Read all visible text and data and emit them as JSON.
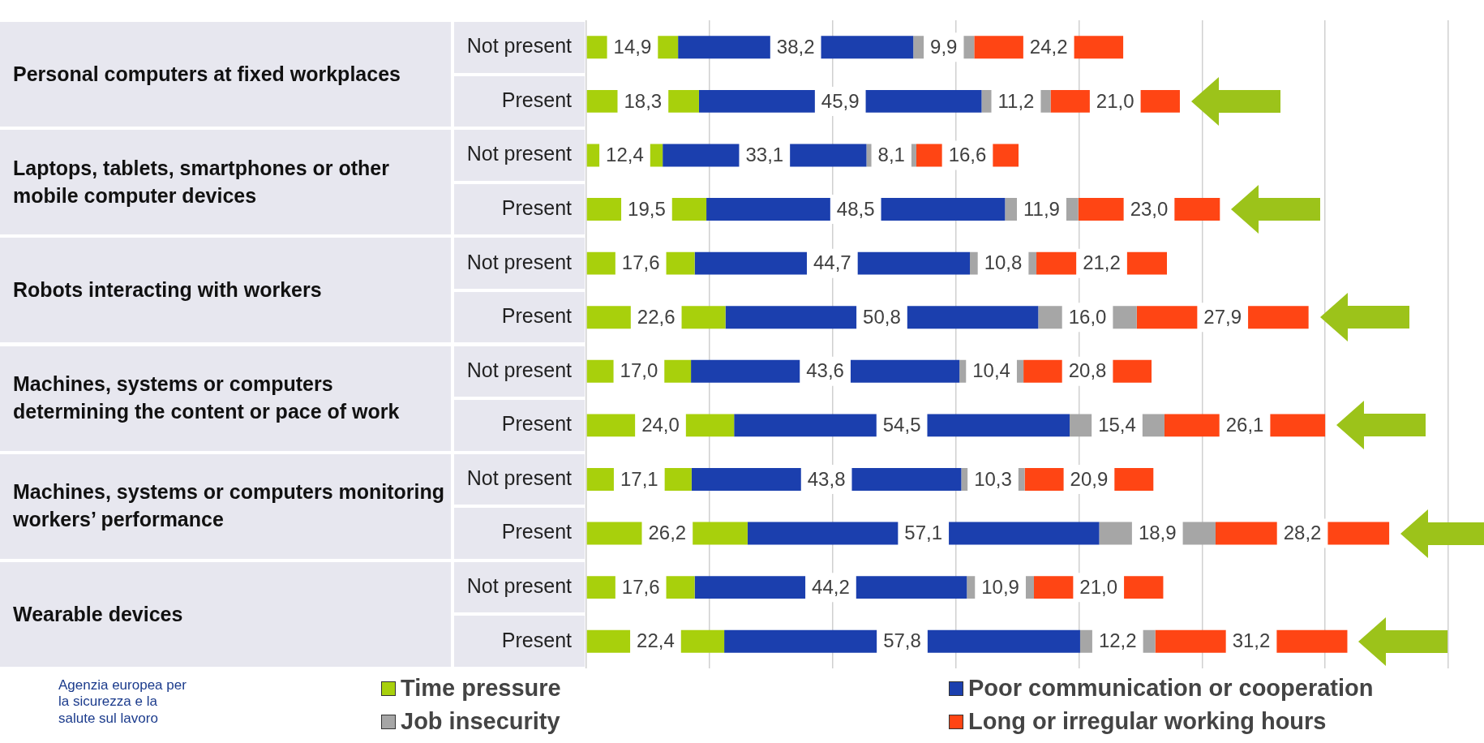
{
  "chart_data": {
    "type": "bar",
    "orientation": "horizontal",
    "stacked": true,
    "categories": [
      "Not present",
      "Present",
      "Not present",
      "Present",
      "Not present",
      "Present",
      "Not present",
      "Present",
      "Not present",
      "Present",
      "Not present",
      "Present"
    ],
    "series": [
      {
        "name": "Time pressure",
        "color": "#a8d00c",
        "values": [
          14.9,
          18.3,
          12.4,
          19.5,
          17.6,
          22.6,
          17.0,
          24.0,
          17.1,
          26.2,
          17.6,
          22.4
        ],
        "value_labels": [
          "14,9",
          "18,3",
          "12,4",
          "19,5",
          "17,6",
          "22,6",
          "17,0",
          "24,0",
          "17,1",
          "26,2",
          "17,6",
          "22,4"
        ]
      },
      {
        "name": "Poor communication or cooperation",
        "color": "#1b3fae",
        "values": [
          38.2,
          45.9,
          33.1,
          48.5,
          44.7,
          50.8,
          43.6,
          54.5,
          43.8,
          57.1,
          44.2,
          57.8
        ],
        "value_labels": [
          "38,2",
          "45,9",
          "33,1",
          "48,5",
          "44,7",
          "50,8",
          "43,6",
          "54,5",
          "43,8",
          "57,1",
          "44,2",
          "57,8"
        ]
      },
      {
        "name": "Job insecurity",
        "color": "#a6a6a6",
        "values": [
          9.9,
          11.2,
          8.1,
          11.9,
          10.8,
          16.0,
          10.4,
          15.4,
          10.3,
          18.9,
          10.9,
          12.2
        ],
        "value_labels": [
          "9,9",
          "11,2",
          "8,1",
          "11,9",
          "10,8",
          "16,0",
          "10,4",
          "15,4",
          "10,3",
          "18,9",
          "10,9",
          "12,2"
        ]
      },
      {
        "name": "Long or irregular working hours",
        "color": "#ff4514",
        "values": [
          24.2,
          21.0,
          16.6,
          23.0,
          21.2,
          27.9,
          20.8,
          26.1,
          20.9,
          28.2,
          21.0,
          31.2
        ],
        "value_labels": [
          "24,2",
          "21,0",
          "16,6",
          "23,0",
          "21,2",
          "27,9",
          "20,8",
          "26,1",
          "20,9",
          "28,2",
          "21,0",
          "31,2"
        ]
      }
    ],
    "annotations": [
      "Personal computers at fixed workplaces",
      "Laptops, tablets, smartphones or other mobile computer devices",
      "Robots interacting with workers",
      "Machines, systems or computers determining the content or pace of work",
      "Machines, systems or computers monitoring workers’ performance",
      "Wearable devices",
      "Agenzia europea per la sicurezza e la salute sul lavoro"
    ],
    "xlim": [
      0,
      140
    ],
    "xticks": [
      {
        "value": 0,
        "label": null
      },
      {
        "value": 20,
        "label": null
      },
      {
        "value": 40,
        "label": null
      },
      {
        "value": 60,
        "label": null
      },
      {
        "value": 80,
        "label": null
      },
      {
        "value": 100,
        "label": null
      },
      {
        "value": 120,
        "label": null
      },
      {
        "value": 140,
        "label": null
      }
    ],
    "tick_labels": "y",
    "grid": "x",
    "legend": "bottom"
  }
}
